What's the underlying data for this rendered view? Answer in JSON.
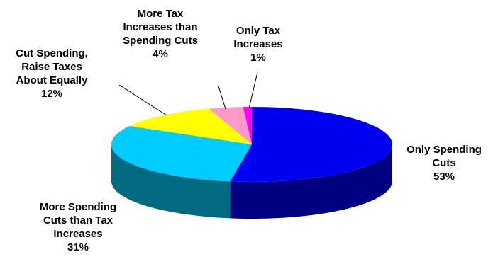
{
  "chart_data": {
    "type": "pie",
    "title": "",
    "three_d": true,
    "slices": [
      {
        "name": "Only Spending Cuts",
        "value": 53,
        "label_lines": [
          "Only Spending",
          "Cuts"
        ],
        "pct_label": "53%",
        "color": "#0000F0",
        "side_color": "#000080"
      },
      {
        "name": "More Spending Cuts than Tax Increases",
        "value": 31,
        "label_lines": [
          "More Spending",
          "Cuts than Tax",
          "Increases"
        ],
        "pct_label": "31%",
        "color": "#00CCFF",
        "side_color": "#006A80"
      },
      {
        "name": "Cut Spending, Raise Taxes About Equally",
        "value": 12,
        "label_lines": [
          "Cut Spending,",
          "Raise Taxes",
          "About Equally"
        ],
        "pct_label": "12%",
        "color": "#FFFF00",
        "side_color": "#808000"
      },
      {
        "name": "More Tax Increases than Spending Cuts",
        "value": 4,
        "label_lines": [
          "More Tax",
          "Increases than",
          "Spending Cuts"
        ],
        "pct_label": "4%",
        "color": "#FF99CC",
        "side_color": "#804C66"
      },
      {
        "name": "Only Tax Increases",
        "value": 1,
        "label_lines": [
          "Only Tax",
          "Increases"
        ],
        "pct_label": "1%",
        "color": "#FF00FF",
        "side_color": "#800080"
      }
    ]
  }
}
